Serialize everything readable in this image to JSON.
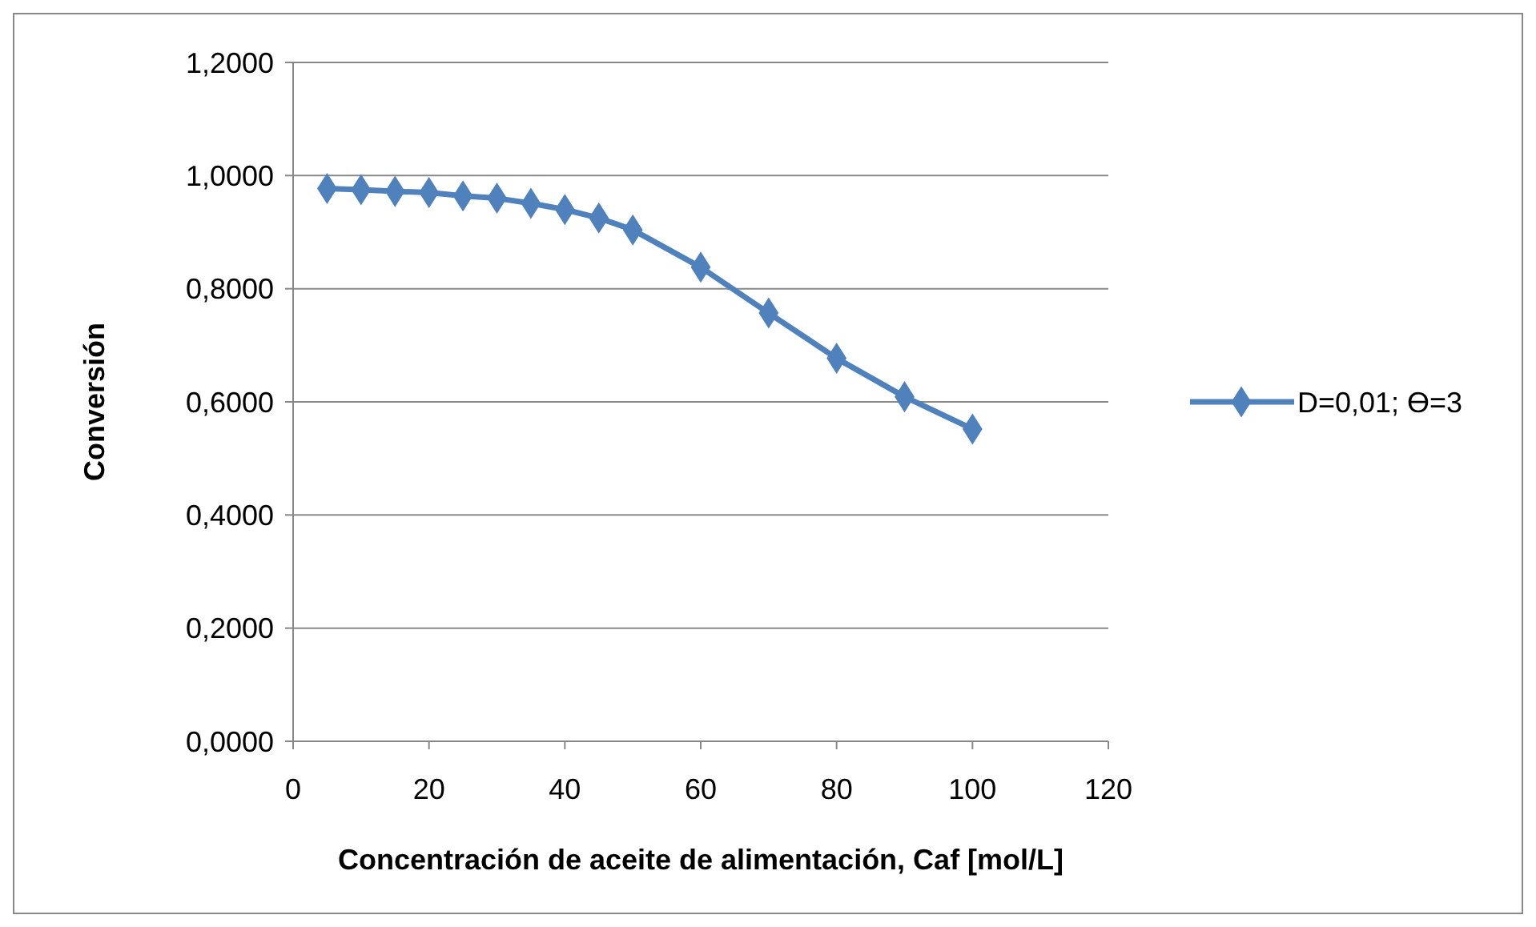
{
  "chart_data": {
    "type": "line",
    "xlabel": "Concentración de aceite de alimentación, Caf [mol/L]",
    "ylabel": "Conversión",
    "x": [
      5,
      10,
      15,
      20,
      25,
      30,
      35,
      40,
      45,
      50,
      60,
      70,
      80,
      90,
      100
    ],
    "series": [
      {
        "name": "D=0,01; Ө=3",
        "color": "#4f81bd",
        "values": [
          0.977,
          0.975,
          0.972,
          0.97,
          0.964,
          0.96,
          0.951,
          0.94,
          0.925,
          0.904,
          0.838,
          0.757,
          0.677,
          0.609,
          0.552
        ]
      }
    ],
    "xlim": [
      0,
      120
    ],
    "xticks": [
      0,
      20,
      40,
      60,
      80,
      100,
      120
    ],
    "ylim": [
      0,
      1.2
    ],
    "yticks": [
      {
        "value": 0,
        "label": "0,0000"
      },
      {
        "value": 0.2,
        "label": "0,2000"
      },
      {
        "value": 0.4,
        "label": "0,4000"
      },
      {
        "value": 0.6,
        "label": "0,6000"
      },
      {
        "value": 0.8,
        "label": "0,8000"
      },
      {
        "value": 1,
        "label": "1,0000"
      },
      {
        "value": 1.2,
        "label": "1,2000"
      }
    ],
    "grid": "y",
    "legend": "right",
    "marker": "diamond",
    "line_style": "solid"
  }
}
